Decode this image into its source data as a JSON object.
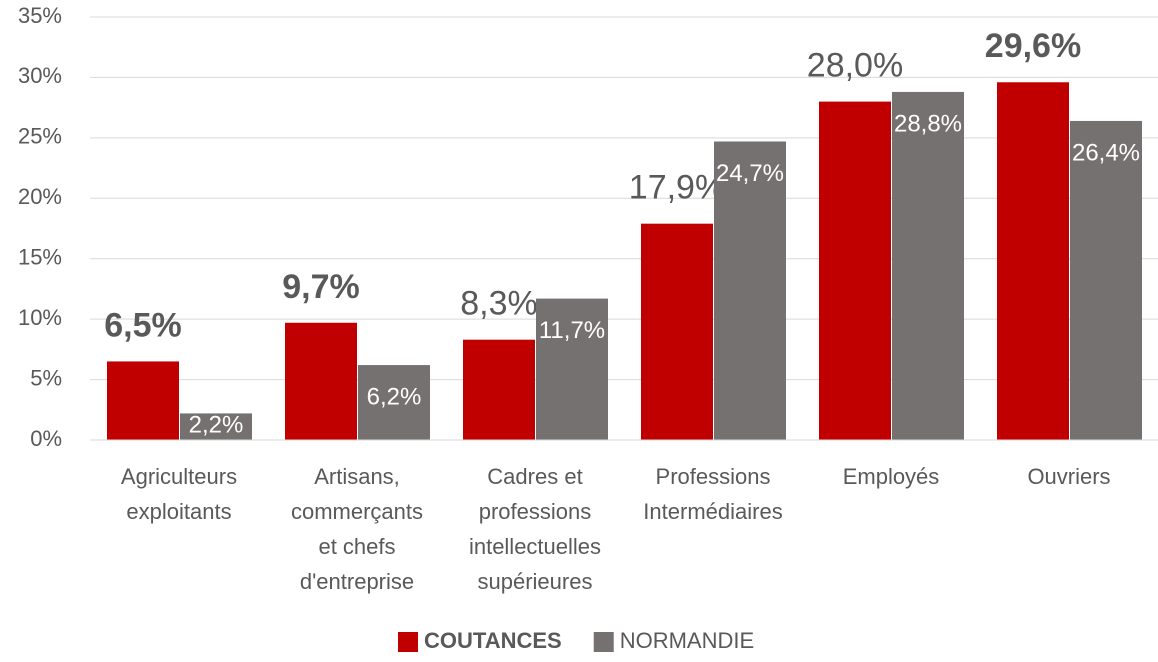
{
  "chart_data": {
    "type": "bar",
    "categories": [
      "Agriculteurs exploitants",
      "Artisans, commerçants et chefs d'entreprise",
      "Cadres et professions intellectuelles supérieures",
      "Professions Intermédiaires",
      "Employés",
      "Ouvriers"
    ],
    "series": [
      {
        "name": "COUTANCES",
        "color": "#c00000",
        "values": [
          6.5,
          9.7,
          8.3,
          17.9,
          28.0,
          29.6
        ],
        "value_labels": [
          "6,5%",
          "9,7%",
          "8,3%",
          "17,9%",
          "28,0%",
          "29,6%"
        ],
        "label_bold": [
          true,
          true,
          false,
          false,
          false,
          true
        ]
      },
      {
        "name": "NORMANDIE",
        "color": "#767171",
        "values": [
          2.2,
          6.2,
          11.7,
          24.7,
          28.8,
          26.4
        ],
        "value_labels": [
          "2,2%",
          "6,2%",
          "11,7%",
          "24,7%",
          "28,8%",
          "26,4%"
        ]
      }
    ],
    "ylim": [
      0,
      35
    ],
    "yticks": [
      {
        "value": 0,
        "label": "0%"
      },
      {
        "value": 5,
        "label": "5%"
      },
      {
        "value": 10,
        "label": "10%"
      },
      {
        "value": 15,
        "label": "15%"
      },
      {
        "value": 20,
        "label": "20%"
      },
      {
        "value": 25,
        "label": "25%"
      },
      {
        "value": 30,
        "label": "30%"
      },
      {
        "value": 35,
        "label": "35%"
      }
    ],
    "grid": true,
    "legend": "bottom"
  }
}
